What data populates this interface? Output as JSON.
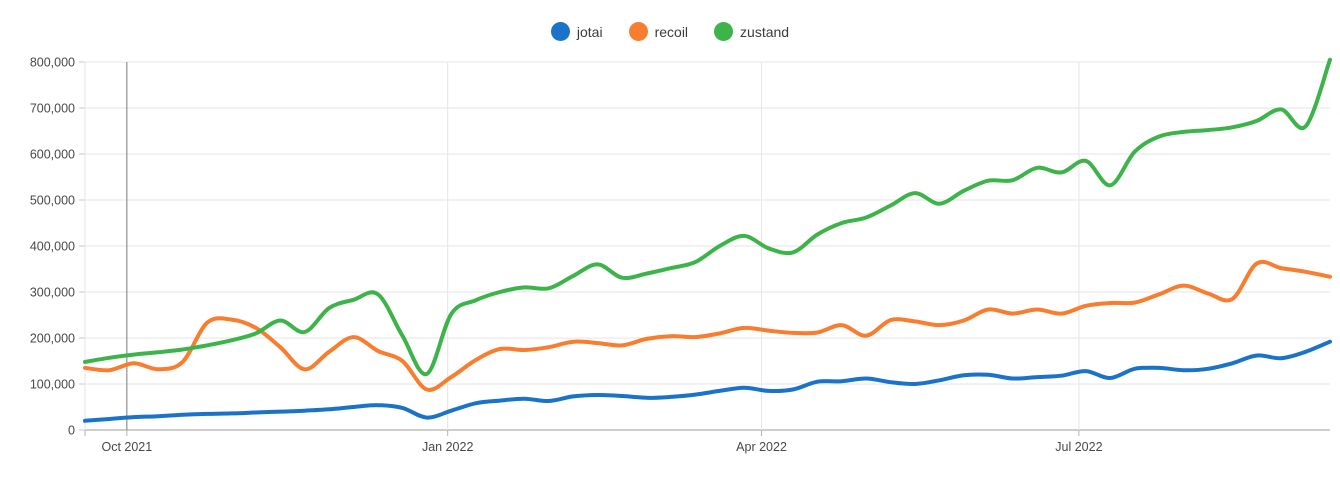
{
  "legend": {
    "items": [
      {
        "label": "jotai",
        "color": "#1a73c8"
      },
      {
        "label": "recoil",
        "color": "#f87d2e"
      },
      {
        "label": "zustand",
        "color": "#3cb44a"
      }
    ]
  },
  "chart_data": {
    "type": "line",
    "ylabel": "",
    "xlabel": "",
    "ylim": [
      0,
      800000
    ],
    "grid": true,
    "legend_position": "top-center",
    "y_tick_labels": [
      "0",
      "100,000",
      "200,000",
      "300,000",
      "400,000",
      "500,000",
      "600,000",
      "700,000",
      "800,000"
    ],
    "y_tick_values": [
      0,
      100000,
      200000,
      300000,
      400000,
      500000,
      600000,
      700000,
      800000
    ],
    "x_tick_labels": [
      "Oct 2021",
      "Jan 2022",
      "Apr 2022",
      "Jul 2022"
    ],
    "x_ticks": [
      {
        "label": "Oct 2021",
        "date": "2021-10-01"
      },
      {
        "label": "Jan 2022",
        "date": "2022-01-01"
      },
      {
        "label": "Apr 2022",
        "date": "2022-04-01"
      },
      {
        "label": "Jul 2022",
        "date": "2022-07-01"
      }
    ],
    "x": [
      "2021-09-19",
      "2021-09-26",
      "2021-10-03",
      "2021-10-10",
      "2021-10-17",
      "2021-10-24",
      "2021-10-31",
      "2021-11-07",
      "2021-11-14",
      "2021-11-21",
      "2021-11-28",
      "2021-12-05",
      "2021-12-12",
      "2021-12-19",
      "2021-12-26",
      "2022-01-02",
      "2022-01-09",
      "2022-01-16",
      "2022-01-23",
      "2022-01-30",
      "2022-02-06",
      "2022-02-13",
      "2022-02-20",
      "2022-02-27",
      "2022-03-06",
      "2022-03-13",
      "2022-03-20",
      "2022-03-27",
      "2022-04-03",
      "2022-04-10",
      "2022-04-17",
      "2022-04-24",
      "2022-05-01",
      "2022-05-08",
      "2022-05-15",
      "2022-05-22",
      "2022-05-29",
      "2022-06-05",
      "2022-06-12",
      "2022-06-19",
      "2022-06-26",
      "2022-07-03",
      "2022-07-10",
      "2022-07-17",
      "2022-07-24",
      "2022-07-31",
      "2022-08-07",
      "2022-08-14",
      "2022-08-21",
      "2022-08-28",
      "2022-09-04",
      "2022-09-11"
    ],
    "series": [
      {
        "name": "jotai",
        "color": "#1a73c8",
        "values": [
          20000,
          24000,
          28000,
          30000,
          33000,
          35000,
          36000,
          38000,
          40000,
          42000,
          45000,
          50000,
          54000,
          48000,
          27000,
          42000,
          58000,
          64000,
          68000,
          63000,
          73000,
          76000,
          74000,
          70000,
          72000,
          77000,
          85000,
          92000,
          85000,
          88000,
          105000,
          106000,
          112000,
          104000,
          100000,
          108000,
          119000,
          120000,
          112000,
          115000,
          118000,
          128000,
          113000,
          133000,
          135000,
          130000,
          133000,
          145000,
          162000,
          156000,
          170000,
          192000
        ]
      },
      {
        "name": "recoil",
        "color": "#f87d2e",
        "values": [
          135000,
          130000,
          145000,
          132000,
          148000,
          233000,
          240000,
          222000,
          180000,
          132000,
          170000,
          202000,
          172000,
          150000,
          88000,
          115000,
          152000,
          176000,
          174000,
          180000,
          192000,
          189000,
          184000,
          198000,
          204000,
          202000,
          210000,
          222000,
          216000,
          211000,
          212000,
          228000,
          205000,
          239000,
          236000,
          228000,
          238000,
          262000,
          253000,
          262000,
          253000,
          270000,
          276000,
          277000,
          295000,
          314000,
          297000,
          285000,
          362000,
          352000,
          344000,
          333000
        ]
      },
      {
        "name": "zustand",
        "color": "#3cb44a",
        "values": [
          148000,
          157000,
          164000,
          169000,
          175000,
          184000,
          195000,
          210000,
          238000,
          213000,
          265000,
          283000,
          295000,
          205000,
          122000,
          252000,
          282000,
          300000,
          310000,
          308000,
          335000,
          360000,
          331000,
          340000,
          352000,
          365000,
          400000,
          422000,
          395000,
          386000,
          425000,
          450000,
          462000,
          488000,
          515000,
          492000,
          520000,
          542000,
          543000,
          570000,
          560000,
          585000,
          532000,
          605000,
          638000,
          648000,
          652000,
          658000,
          672000,
          697000,
          660000,
          805000
        ]
      }
    ]
  }
}
